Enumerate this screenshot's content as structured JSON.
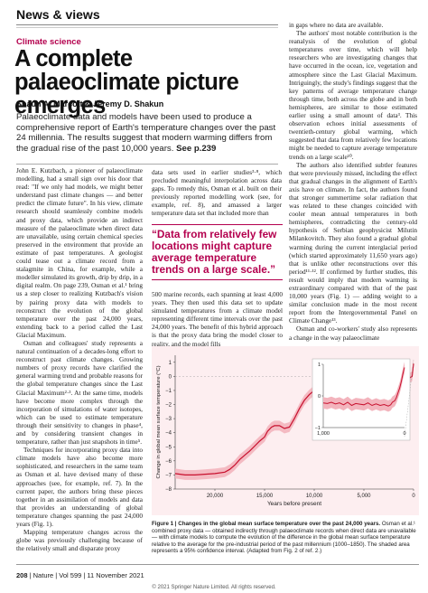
{
  "section": "News & views",
  "kicker": "Climate science",
  "headline": "A complete palaeoclimate picture emerges",
  "authors": "Shaun A. Marcott & Jeremy D. Shakun",
  "standfirst": "Palaeoclimate data and models have been used to produce a comprehensive report of Earth's temperature changes over the past 24 millennia. The results suggest that modern warming differs from the gradual rise of the past 10,000 years.",
  "standfirst_ref": "See p.239",
  "col1": [
    "John E. Kutzbach, a pioneer of palaeoclimate modelling, had a small sign over his door that read: \"If we only had models, we might better understand past climate changes — and better predict the climate future\". In his view, climate research should seamlessly combine models and proxy data, which provide an indirect measure of the palaeoclimate when direct data are unavailable, using certain chemical species preserved in the environment that provide an estimate of past temperatures. A geologist could tease out a climate record from a stalagmite in China, for example, while a modeller simulated its growth, drip by drip, in a digital realm. On page 239, Osman et al.¹ bring us a step closer to realizing Kutzbach's vision by pairing proxy data with models to reconstruct the evolution of the global temperature over the past 24,000 years, extending back to a period called the Last Glacial Maximum.",
    "Osman and colleagues' study represents a natural continuation of a decades-long effort to reconstruct past climate changes. Growing numbers of proxy records have clarified the general warming trend and probable reasons for the global temperature changes since the Last Glacial Maximum²·³. At the same time, models have become more complex through the incorporation of simulations of water isotopes, which can be used to estimate temperature through their sensitivity to changes in phase⁴, and by considering transient changes in temperature, rather than just snapshots in time⁵.",
    "Techniques for incorporating proxy data into climate models have also become more sophisticated, and researchers in the same team as Osman et al. have devised many of these approaches (see, for example, ref. 7). In the current paper, the authors bring these pieces together in an assimilation of models and data that provides an understanding of global temperature changes spanning the past 24,000 years (Fig. 1).",
    "Mapping temperature changes across the globe was previously challenging because of the relatively small and disparate proxy"
  ],
  "col2_top": "data sets used in earlier studies³·⁸, which precluded meaningful interpolation across data gaps. To remedy this, Osman et al. built on their previously reported modelling work (see, for example, ref. 8), and amassed a larger temperature data set that included more than",
  "pullquote": "“Data from relatively few locations might capture average temperature trends on a large scale.”",
  "col2_bottom": "500 marine records, each spanning at least 4,000 years. They then used this data set to update simulated temperatures from a climate model representing different time intervals over the past 24,000 years. The benefit of this hybrid approach is that the proxy data bring the model closer to reality, and the model fills",
  "col3": [
    "in gaps where no data are available.",
    "The authors' most notable contribution is the reanalysis of the evolution of global temperatures over time, which will help researchers who are investigating changes that have occurred in the ocean, ice, vegetation and atmosphere since the Last Glacial Maximum. Intriguingly, the study's findings suggest that the key patterns of average temperature change through time, both across the globe and in both hemispheres, are similar to those estimated earlier using a small amount of data³. This observation echoes initial assessments of twentieth-century global warming, which suggested that data from relatively few locations might be needed to capture average temperature trends on a large scale¹⁰.",
    "The authors also identified subtler features that were previously missed, including the effect that gradual changes in the alignment of Earth's axis have on climate. In fact, the authors found that stronger summertime solar radiation that was related to these changes coincided with cooler mean annual temperatures in both hemispheres, contradicting the century-old hypothesis of Serbian geophysicist Milutin Milankovitch. They also found a gradual global warming during the current interglacial period (which started approximately 11,650 years ago) that is unlike other reconstructions over this period¹¹·¹². If confirmed by further studies, this result would imply that modern warming is extraordinary compared with that of the past 10,000 years (Fig. 1) — adding weight to a similar conclusion made in the most recent report from the Intergovernmental Panel on Climate Change¹³.",
    "Osman and co-workers' study also represents a change in the way palaeoclimate"
  ],
  "chart_data": {
    "type": "line",
    "title": "",
    "xlabel": "Years before present",
    "ylabel": "Change in global mean surface temperature (°C)",
    "xlim": [
      24000,
      0
    ],
    "ylim": [
      -8,
      1.5
    ],
    "xticks": [
      "20,000",
      "15,000",
      "10,000",
      "5,000",
      "0"
    ],
    "yticks": [
      "1",
      "0",
      "−1",
      "−2",
      "−3",
      "−4",
      "−5",
      "−6",
      "−7",
      "−8"
    ],
    "series": [
      {
        "x": [
          24000,
          23000,
          22000,
          21000,
          20000,
          19000,
          18500,
          18000,
          17500,
          17000,
          16500,
          16000,
          15500,
          15000,
          14700,
          14300,
          14000,
          13500,
          13000,
          12500,
          12000,
          11500,
          11000,
          10500,
          10000,
          9000,
          8000,
          7000,
          6000,
          5000,
          4000,
          3000,
          2000,
          1000,
          500,
          150,
          50,
          0
        ],
        "values": [
          -6.9,
          -7.0,
          -7.0,
          -6.95,
          -6.9,
          -6.8,
          -6.6,
          -6.3,
          -5.9,
          -5.6,
          -5.3,
          -4.95,
          -4.6,
          -4.3,
          -3.9,
          -3.6,
          -3.5,
          -3.5,
          -3.7,
          -3.6,
          -3.0,
          -2.3,
          -1.7,
          -1.3,
          -1.0,
          -0.85,
          -0.7,
          -0.6,
          -0.5,
          -0.45,
          -0.4,
          -0.3,
          -0.22,
          -0.18,
          -0.15,
          0.0,
          0.6,
          0.9
        ]
      }
    ],
    "inset": {
      "xlim": [
        1000,
        0
      ],
      "ylim": [
        -1,
        1
      ],
      "xticks": [
        "1,000",
        "0"
      ],
      "yticks": [
        "1",
        "0",
        "−1"
      ],
      "x": [
        1000,
        950,
        900,
        850,
        800,
        750,
        700,
        650,
        600,
        550,
        500,
        450,
        400,
        350,
        300,
        250,
        200,
        170,
        150,
        120,
        100,
        80,
        60,
        40,
        20,
        0
      ],
      "values": [
        -0.22,
        -0.24,
        -0.2,
        -0.25,
        -0.22,
        -0.28,
        -0.2,
        -0.3,
        -0.24,
        -0.26,
        -0.28,
        -0.22,
        -0.3,
        -0.25,
        -0.3,
        -0.27,
        -0.32,
        -0.28,
        -0.2,
        -0.15,
        -0.05,
        0.1,
        0.25,
        0.45,
        0.7,
        0.9
      ]
    }
  },
  "figure_caption_bold": "Figure 1 | Changes in the global mean surface temperature over the past 24,000 years.",
  "figure_caption": "Osman et al.¹ combined proxy data — obtained indirectly through palaeoclimate records when direct data are unavailable — with climate models to compute the evolution of the difference in the global mean surface temperature relative to the average for the pre-industrial period of the past millennium (1000–1850). The shaded area represents a 95% confidence interval. (Adapted from Fig. 2 of ref. 2.)",
  "footer_page": "208",
  "footer_text": "| Nature | Vol 599 | 11 November 2021",
  "copyright": "© 2021 Springer Nature Limited. All rights reserved.",
  "colors": {
    "accent": "#b4004e",
    "line": "#c8102e",
    "band": "#f3b4bd"
  }
}
